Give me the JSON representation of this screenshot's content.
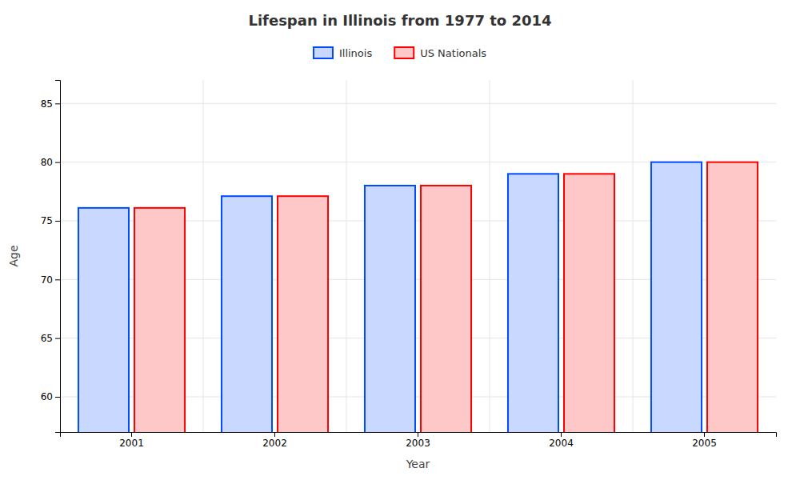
{
  "chart_data": {
    "type": "bar",
    "title": "Lifespan in Illinois from 1977 to 2014",
    "xlabel": "Year",
    "ylabel": "Age",
    "categories": [
      "2001",
      "2002",
      "2003",
      "2004",
      "2005"
    ],
    "series": [
      {
        "name": "Illinois",
        "color": "#c8d8ff",
        "values": [
          76.1,
          77.1,
          78.0,
          79.0,
          80.0
        ]
      },
      {
        "name": "US Nationals",
        "color": "#ffc8c8",
        "values": [
          76.1,
          77.1,
          78.0,
          79.0,
          80.0
        ]
      }
    ],
    "ylim": [
      57,
      87
    ],
    "yticks": [
      60,
      65,
      70,
      75,
      80,
      85
    ],
    "grid": true,
    "legend": "top"
  }
}
